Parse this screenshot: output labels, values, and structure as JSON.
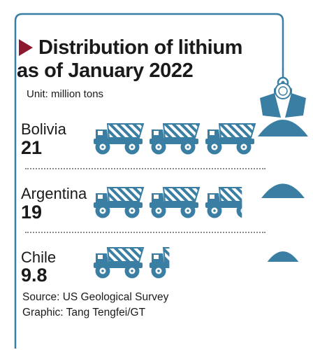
{
  "title_lines": [
    "Distribution of lithium",
    "as of January 2022"
  ],
  "unit": "Unit: million tons",
  "source": "Source: US Geological Survey",
  "credit": "Graphic: Tang Tengfei/GT",
  "colors": {
    "accent": "#8b1a2f",
    "truck": "#3a7fa3",
    "frame": "#3a7fa3",
    "text": "#1a1a1a"
  },
  "icons": [
    "play-triangle-icon",
    "truck-icon",
    "claw-crane-icon",
    "ore-pile-icon"
  ],
  "chart_data": {
    "type": "bar",
    "title": "Distribution of lithium as of January 2022",
    "unit": "million tons",
    "units_per_icon": 7,
    "categories": [
      "Bolivia",
      "Argentina",
      "Chile"
    ],
    "values": [
      21,
      19,
      9.8
    ],
    "value_labels": [
      "21",
      "19",
      "9.8"
    ],
    "source": "US Geological Survey"
  }
}
